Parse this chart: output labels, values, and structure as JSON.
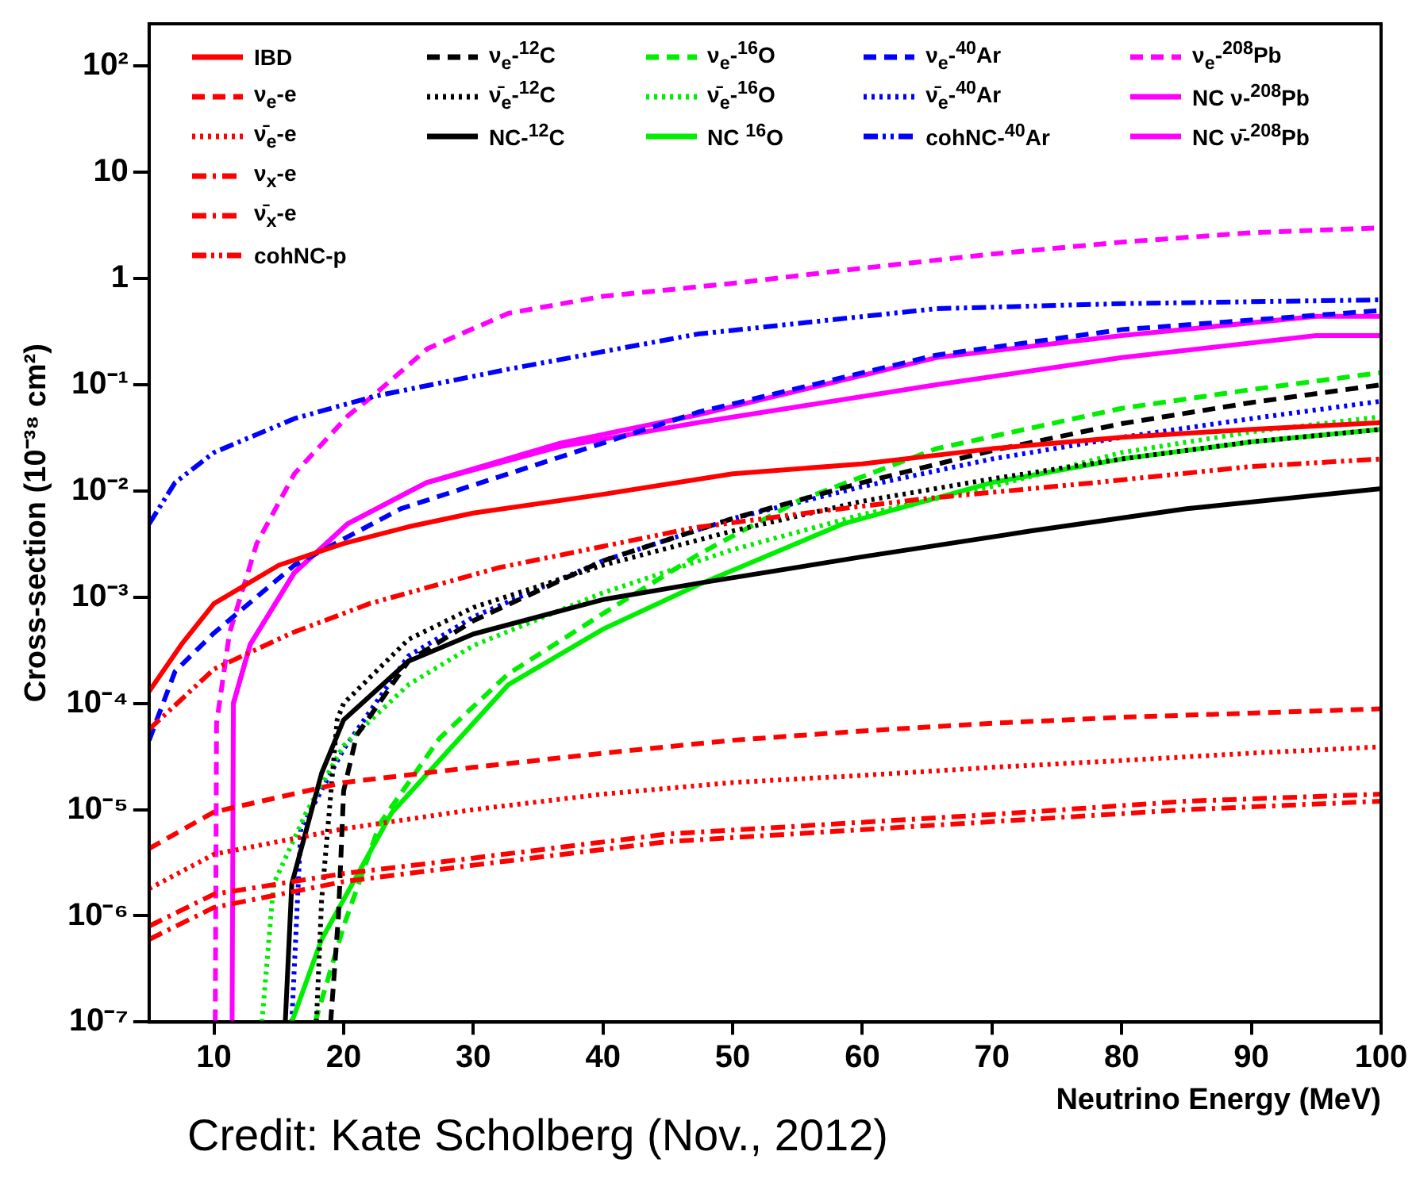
{
  "chart_data": {
    "type": "line",
    "xlabel": "Neutrino Energy (MeV)",
    "ylabel": "Cross-section (10⁻³⁸ cm²)",
    "log": "y",
    "xlim": [
      5,
      100
    ],
    "xticks": [
      10,
      20,
      30,
      40,
      50,
      60,
      70,
      80,
      90,
      100
    ],
    "ylim": [
      1e-07,
      250
    ],
    "yticks": [
      {
        "value": 1e-07,
        "label": "10⁻⁷"
      },
      {
        "value": 1e-06,
        "label": "10⁻⁶"
      },
      {
        "value": 1e-05,
        "label": "10⁻⁵"
      },
      {
        "value": 0.0001,
        "label": "10⁻⁴"
      },
      {
        "value": 0.001,
        "label": "10⁻³"
      },
      {
        "value": 0.01,
        "label": "10⁻²"
      },
      {
        "value": 0.1,
        "label": "10⁻¹"
      },
      1,
      10,
      {
        "value": 100,
        "label": "10²"
      }
    ],
    "legend": "top left",
    "annotations": [
      "Credit: Kate Scholberg (Nov., 2012)"
    ],
    "series": [
      {
        "name": "IBD",
        "color": "#ff0000",
        "line_style": "solid",
        "x": [
          5,
          7.5,
          10,
          15,
          20,
          25,
          30,
          40,
          50,
          60,
          70,
          80,
          90,
          100
        ],
        "values": [
          0.00013,
          0.00036,
          0.00087,
          0.002,
          0.0032,
          0.0046,
          0.0062,
          0.0093,
          0.0145,
          0.018,
          0.025,
          0.032,
          0.038,
          0.044
        ]
      },
      {
        "name": "ν$_{e}$-e",
        "color": "#ff0000",
        "line_style": "dashed",
        "x": [
          5,
          10,
          20,
          30,
          40,
          50,
          60,
          70,
          80,
          90,
          100
        ],
        "values": [
          4.3e-06,
          9.5e-06,
          1.8e-05,
          2.5e-05,
          3.4e-05,
          4.5e-05,
          5.5e-05,
          6.5e-05,
          7.4e-05,
          8.1e-05,
          8.9e-05
        ]
      },
      {
        "name": "ν̄$_{e}$-e",
        "color": "#ff0000",
        "line_style": "dotted",
        "x": [
          5,
          10,
          20,
          30,
          40,
          50,
          60,
          70,
          80,
          90,
          100
        ],
        "values": [
          1.8e-06,
          3.8e-06,
          6.6e-06,
          1e-05,
          1.4e-05,
          1.8e-05,
          2.1e-05,
          2.5e-05,
          2.9e-05,
          3.4e-05,
          3.9e-05
        ]
      },
      {
        "name": "ν$_{x}$-e",
        "color": "#ff0000",
        "line_style": "dashdot",
        "x": [
          5,
          10,
          20,
          30,
          45,
          70,
          85,
          100
        ],
        "values": [
          8e-07,
          1.6e-06,
          2.5e-06,
          3.5e-06,
          5.9e-06,
          9e-06,
          1.2e-05,
          1.4e-05
        ]
      },
      {
        "name": "ν̄$_{x}$-e",
        "color": "#ff0000",
        "line_style": "dashdot",
        "x": [
          5,
          10,
          20,
          30,
          45,
          70,
          85,
          100
        ],
        "values": [
          6e-07,
          1.2e-06,
          2.1e-06,
          3e-06,
          5e-06,
          7.7e-06,
          1e-05,
          1.2e-05
        ]
      },
      {
        "name": "cohNC-p",
        "color": "#ff0000",
        "line_style": "dashdotdot",
        "x": [
          5,
          10,
          16,
          22,
          32,
          47,
          57,
          65,
          78,
          90,
          100
        ],
        "values": [
          5.7e-05,
          0.00021,
          0.00046,
          0.00087,
          0.0019,
          0.0045,
          0.0065,
          0.0085,
          0.012,
          0.017,
          0.02
        ]
      },
      {
        "name": "ν$_{e}$-$^{12}$C",
        "color": "#000000",
        "line_style": "dashed",
        "x": [
          19,
          19.6,
          20,
          21,
          25,
          30,
          40,
          50,
          60,
          70,
          80,
          90,
          100
        ],
        "values": [
          1e-07,
          1e-06,
          1.5e-05,
          5e-05,
          0.00025,
          0.0006,
          0.0022,
          0.0055,
          0.012,
          0.024,
          0.043,
          0.068,
          0.1
        ]
      },
      {
        "name": "ν̄$_{e}$-$^{12}$C",
        "color": "#000000",
        "line_style": "dotted",
        "x": [
          17.9,
          18.3,
          19.5,
          20,
          25,
          30,
          40,
          50,
          60,
          70,
          80,
          90,
          100
        ],
        "values": [
          1e-07,
          1.4e-06,
          7e-05,
          0.0001,
          0.0004,
          0.0008,
          0.002,
          0.0042,
          0.008,
          0.013,
          0.02,
          0.029,
          0.038
        ]
      },
      {
        "name": "NC-$^{12}$C",
        "color": "#000000",
        "line_style": "solid",
        "x": [
          15.5,
          16,
          18.3,
          20,
          25,
          30,
          40,
          47.3,
          60,
          73,
          85,
          100
        ],
        "values": [
          1e-07,
          2e-06,
          2.2e-05,
          7e-05,
          0.00025,
          0.00045,
          0.00095,
          0.00135,
          0.0024,
          0.0042,
          0.0068,
          0.0105
        ]
      },
      {
        "name": "ν$_{e}$-$^{16}$O",
        "color": "#00ee00",
        "line_style": "dashed",
        "x": [
          17.8,
          20,
          22.8,
          27.4,
          32.7,
          40,
          47.3,
          55,
          65.7,
          80,
          90,
          100
        ],
        "values": [
          1e-07,
          8e-07,
          7.4e-06,
          4.7e-05,
          0.00019,
          0.0007,
          0.0025,
          0.008,
          0.025,
          0.06,
          0.09,
          0.13
        ]
      },
      {
        "name": "ν̄$_{e}$-$^{16}$O",
        "color": "#00ee00",
        "line_style": "dotted",
        "x": [
          13.7,
          14.6,
          17.1,
          20,
          25,
          30,
          40,
          50,
          60,
          70,
          80,
          90,
          100
        ],
        "values": [
          1e-07,
          2e-06,
          9.3e-06,
          4e-05,
          0.00015,
          0.00035,
          0.0011,
          0.0028,
          0.006,
          0.011,
          0.023,
          0.036,
          0.05
        ]
      },
      {
        "name": "NC $^{16}$O",
        "color": "#00ee00",
        "line_style": "solid",
        "x": [
          16,
          18.3,
          23.7,
          32.7,
          40,
          47.3,
          58.5,
          70,
          80,
          90,
          100
        ],
        "values": [
          1e-07,
          6e-07,
          9.3e-06,
          0.00015,
          0.0005,
          0.0013,
          0.0049,
          0.012,
          0.02,
          0.029,
          0.038
        ]
      },
      {
        "name": "ν$_{e}$-$^{40}$Ar",
        "color": "#0000ff",
        "line_style": "dashed",
        "x": [
          5,
          7,
          10,
          16.2,
          24.4,
          32.7,
          47.3,
          65.7,
          80,
          100
        ],
        "values": [
          4.5e-05,
          0.0002,
          0.00046,
          0.002,
          0.0068,
          0.0145,
          0.055,
          0.19,
          0.33,
          0.5
        ]
      },
      {
        "name": "ν̄$_{e}$-$^{40}$Ar",
        "color": "#0000ff",
        "line_style": "dotted",
        "x": [
          16,
          16.7,
          20,
          25,
          30,
          40,
          50,
          60,
          70,
          80,
          90,
          100
        ],
        "values": [
          1e-07,
          6.6e-06,
          3.7e-05,
          0.00028,
          0.00065,
          0.0022,
          0.0055,
          0.011,
          0.02,
          0.032,
          0.048,
          0.07
        ]
      },
      {
        "name": "cohNC-$^{40}$Ar",
        "color": "#0000ff",
        "line_style": "dashdotdot",
        "x": [
          5,
          7,
          10,
          16.2,
          22.4,
          32.7,
          47.3,
          65.7,
          80,
          100
        ],
        "values": [
          0.0049,
          0.012,
          0.023,
          0.048,
          0.078,
          0.14,
          0.3,
          0.52,
          0.58,
          0.63
        ]
      },
      {
        "name": "ν$_{e}$-$^{208}$Pb",
        "color": "#ff00ff",
        "line_style": "dashed",
        "x": [
          10.1,
          10.2,
          11.2,
          13.3,
          16.2,
          20.4,
          22,
          26.5,
          32.7,
          40,
          50,
          60,
          70,
          80,
          90,
          100
        ],
        "values": [
          1e-07,
          6.5e-05,
          0.00046,
          0.0032,
          0.0145,
          0.052,
          0.074,
          0.22,
          0.47,
          0.68,
          0.9,
          1.25,
          1.7,
          2.2,
          2.7,
          3
        ]
      },
      {
        "name": "NC ν-$^{208}$Pb",
        "color": "#ff00ff",
        "line_style": "solid",
        "x": [
          11.4,
          11.5,
          12.8,
          16.2,
          20.3,
          26.4,
          36.6,
          47.3,
          65.7,
          80,
          95,
          100
        ],
        "values": [
          1e-07,
          0.0001,
          0.00036,
          0.0017,
          0.0049,
          0.012,
          0.028,
          0.052,
          0.18,
          0.29,
          0.44,
          0.44
        ]
      },
      {
        "name": "NC ν̄-$^{208}$Pb",
        "color": "#ff00ff",
        "line_style": "solid",
        "x": [
          11.5,
          12.8,
          16.2,
          20.3,
          26.4,
          36.6,
          47.3,
          65.7,
          80,
          95,
          100
        ],
        "values": [
          0.0001,
          0.00036,
          0.0017,
          0.0049,
          0.012,
          0.026,
          0.044,
          0.1,
          0.18,
          0.29,
          0.29
        ]
      }
    ]
  }
}
